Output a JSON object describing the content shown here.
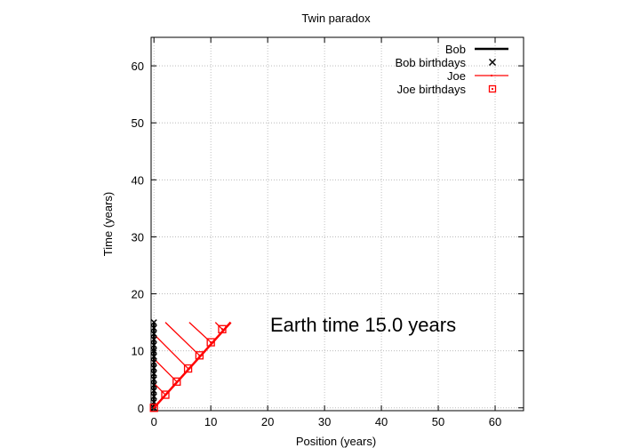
{
  "chart_data": {
    "type": "line",
    "title": "Twin paradox",
    "xlabel": "Position (years)",
    "ylabel": "Time (years)",
    "xlim": [
      -0.5,
      65
    ],
    "ylim": [
      -0.5,
      65
    ],
    "xticks": [
      0,
      10,
      20,
      30,
      40,
      50,
      60
    ],
    "yticks": [
      0,
      10,
      20,
      30,
      40,
      50,
      60
    ],
    "grid": true,
    "legend_position": "top-right",
    "annotation": "Earth time 15.0 years",
    "series": [
      {
        "name": "Bob",
        "style": "line",
        "color": "#000000",
        "x": [
          0,
          0
        ],
        "y": [
          0,
          15
        ]
      },
      {
        "name": "Bob birthdays",
        "style": "cross",
        "color": "#000000",
        "x": [
          0,
          0,
          0,
          0,
          0,
          0,
          0,
          0,
          0,
          0,
          0,
          0,
          0,
          0,
          0,
          0
        ],
        "y": [
          0,
          1,
          2,
          3,
          4,
          5,
          6,
          7,
          8,
          9,
          10,
          11,
          12,
          13,
          14,
          15
        ]
      },
      {
        "name": "Joe",
        "style": "line",
        "color": "#ff0000",
        "x": [
          0,
          13.5
        ],
        "y": [
          0,
          15
        ]
      },
      {
        "name": "Joe birthdays",
        "style": "square",
        "color": "#ff0000",
        "x": [
          0,
          2,
          4,
          6,
          8,
          10,
          12
        ],
        "y": [
          0,
          2.3,
          4.6,
          6.9,
          9.2,
          11.5,
          13.8
        ]
      }
    ],
    "signal_lines": [
      {
        "x": [
          2,
          0
        ],
        "y": [
          2.3,
          4.3
        ]
      },
      {
        "x": [
          4,
          0
        ],
        "y": [
          4.6,
          8.6
        ]
      },
      {
        "x": [
          6,
          0
        ],
        "y": [
          6.9,
          12.9
        ]
      },
      {
        "x": [
          8,
          2
        ],
        "y": [
          9.2,
          15
        ]
      },
      {
        "x": [
          10,
          6.2
        ],
        "y": [
          11.5,
          15
        ]
      },
      {
        "x": [
          12,
          10.8
        ],
        "y": [
          13.8,
          15
        ]
      }
    ]
  }
}
